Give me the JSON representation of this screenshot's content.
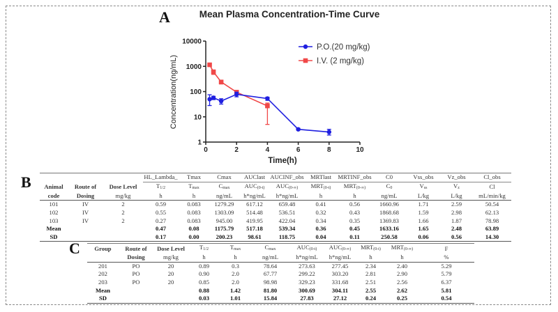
{
  "panels": {
    "a": "A",
    "b": "B",
    "c": "C"
  },
  "chart_data": {
    "type": "line",
    "title": "Mean Plasma Concentration-Time Curve",
    "xlabel": "Time(h)",
    "ylabel": "Concentration(ng/mL)",
    "xlim": [
      0,
      10
    ],
    "ylim": [
      1,
      10000
    ],
    "yscale": "log",
    "xticks": [
      "0",
      "2",
      "4",
      "6",
      "8",
      "10"
    ],
    "yticks": [
      "1",
      "10",
      "100",
      "1000",
      "10000"
    ],
    "legend_position": "top-right",
    "grid": false,
    "series": [
      {
        "name": "P.O.(20 mg/kg)",
        "color": "#1f1fe0",
        "marker": "circle",
        "x": [
          0.25,
          0.5,
          1,
          2,
          4,
          6,
          8
        ],
        "y": [
          50,
          57,
          42,
          78,
          53,
          3.2,
          2.5
        ],
        "err_low": [
          28,
          48,
          32,
          62,
          45,
          3.0,
          1.9
        ],
        "err_high": [
          75,
          65,
          52,
          95,
          60,
          3.5,
          3.2
        ]
      },
      {
        "name": "I.V. (2 mg/kg)",
        "color": "#f04848",
        "marker": "square",
        "x": [
          0.25,
          0.5,
          1,
          2,
          4
        ],
        "y": [
          1150,
          600,
          240,
          95,
          27
        ],
        "err_low": [
          1000,
          480,
          200,
          85,
          5
        ],
        "err_high": [
          1250,
          720,
          280,
          105,
          35
        ]
      }
    ]
  },
  "table_b": {
    "header1": [
      "",
      "",
      "",
      "HL_Lambda_",
      "Tmax",
      "Cmax",
      "AUClast",
      "AUCINF_obs",
      "MRTlast",
      "MRTINF_obs",
      "C0",
      "Vss_obs",
      "Vz_obs",
      "Cl_obs"
    ],
    "header2": [
      [
        "Animal",
        ""
      ],
      [
        "Route of",
        ""
      ],
      [
        "Dose Level",
        ""
      ],
      [
        "T",
        "1/2"
      ],
      [
        "T",
        "max"
      ],
      [
        "C",
        "max"
      ],
      [
        "AUC",
        "(0-t)"
      ],
      [
        "AUC",
        "(0-∞)"
      ],
      [
        "MRT",
        "(0-t)"
      ],
      [
        "MRT",
        "(0-∞)"
      ],
      [
        "C",
        "0"
      ],
      [
        "V",
        "ss"
      ],
      [
        "V",
        "z"
      ],
      [
        "Cl",
        ""
      ]
    ],
    "header3": [
      "code",
      "Dosing",
      "mg/kg",
      "h",
      "h",
      "ng/mL",
      "h*ng/mL",
      "h*ng/mL",
      "h",
      "h",
      "ng/mL",
      "L/kg",
      "L/kg",
      "mL/min/kg"
    ],
    "rows": [
      [
        "101",
        "IV",
        "2",
        "0.59",
        "0.083",
        "1279.29",
        "617.12",
        "659.48",
        "0.41",
        "0.56",
        "1660.96",
        "1.71",
        "2.59",
        "50.54"
      ],
      [
        "102",
        "IV",
        "2",
        "0.55",
        "0.083",
        "1303.09",
        "514.48",
        "536.51",
        "0.32",
        "0.43",
        "1868.68",
        "1.59",
        "2.98",
        "62.13"
      ],
      [
        "103",
        "IV",
        "2",
        "0.27",
        "0.083",
        "945.00",
        "419.95",
        "422.04",
        "0.34",
        "0.35",
        "1369.83",
        "1.66",
        "1.87",
        "78.98"
      ]
    ],
    "summary": [
      [
        "Mean",
        "",
        "",
        "0.47",
        "0.08",
        "1175.79",
        "517.18",
        "539.34",
        "0.36",
        "0.45",
        "1633.16",
        "1.65",
        "2.48",
        "63.89"
      ],
      [
        "SD",
        "",
        "",
        "0.17",
        "0.00",
        "200.23",
        "98.61",
        "118.75",
        "0.04",
        "0.11",
        "250.58",
        "0.06",
        "0.56",
        "14.30"
      ]
    ]
  },
  "table_c": {
    "header1": [
      [
        "Group",
        ""
      ],
      [
        "Route of",
        ""
      ],
      [
        "Dose Level",
        ""
      ],
      [
        "T",
        "1/2"
      ],
      [
        "T",
        "max"
      ],
      [
        "C",
        "max"
      ],
      [
        "AUC",
        "(0-t)"
      ],
      [
        "AUC",
        "(0-∞)"
      ],
      [
        "MRT",
        "(0-t)"
      ],
      [
        "MRT",
        "(0-∞)"
      ],
      [
        "F",
        ""
      ]
    ],
    "header2": [
      "",
      "Dosing",
      "mg/kg",
      "h",
      "h",
      "ng/mL",
      "h*ng/mL",
      "h*ng/mL",
      "h",
      "h",
      "%"
    ],
    "rows": [
      [
        "201",
        "PO",
        "20",
        "0.89",
        "0.3",
        "78.64",
        "273.63",
        "277.45",
        "2.34",
        "2.40",
        "5.29"
      ],
      [
        "202",
        "PO",
        "20",
        "0.90",
        "2.0",
        "67.77",
        "299.22",
        "303.20",
        "2.81",
        "2.90",
        "5.79"
      ],
      [
        "203",
        "PO",
        "20",
        "0.85",
        "2.0",
        "98.98",
        "329.23",
        "331.68",
        "2.51",
        "2.56",
        "6.37"
      ]
    ],
    "summary": [
      [
        "Mean",
        "",
        "",
        "0.88",
        "1.42",
        "81.80",
        "300.69",
        "304.11",
        "2.55",
        "2.62",
        "5.81"
      ],
      [
        "SD",
        "",
        "",
        "0.03",
        "1.01",
        "15.84",
        "27.83",
        "27.12",
        "0.24",
        "0.25",
        "0.54"
      ]
    ]
  }
}
